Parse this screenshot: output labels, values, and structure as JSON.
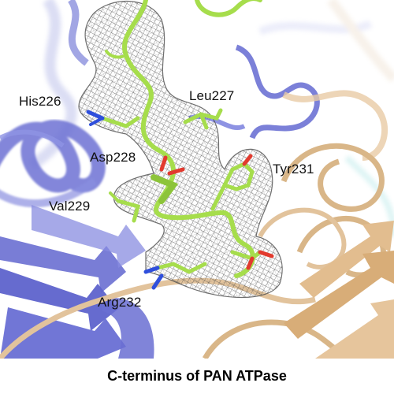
{
  "figure": {
    "residue_labels": [
      "His226",
      "Leu227",
      "Asp228",
      "Tyr231",
      "Val229",
      "Arg232"
    ],
    "caption": "C-terminus of PAN ATPase",
    "colors": {
      "background": "#ffffff",
      "blue_ribbon": "#7b80d8",
      "tan_ribbon": "#e2c39c",
      "green_sticks": "#a6dd4c",
      "mesh": "#555555",
      "oxygen": "#e23a2e",
      "nitrogen": "#2f4fdc"
    }
  }
}
